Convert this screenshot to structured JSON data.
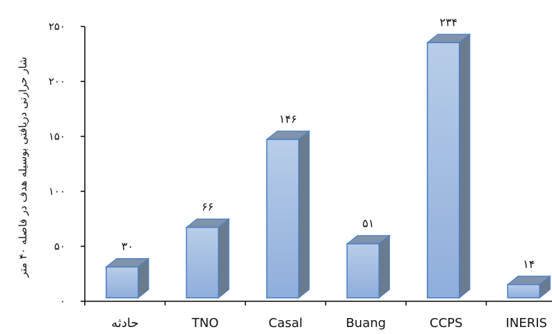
{
  "chart_data": {
    "type": "bar",
    "style": "3d-column",
    "categories": [
      "حادثه",
      "TNO",
      "Casal",
      "Buang",
      "CCPS",
      "INERIS"
    ],
    "values": [
      30,
      66,
      146,
      51,
      234,
      14
    ],
    "value_labels": [
      "۳۰",
      "۶۶",
      "۱۴۶",
      "۵۱",
      "۲۳۴",
      "۱۴"
    ],
    "ylim": [
      0,
      250
    ],
    "y_ticks": [
      {
        "value": 0,
        "label": "۰"
      },
      {
        "value": 50,
        "label": "۵۰"
      },
      {
        "value": 100,
        "label": "۱۰۰"
      },
      {
        "value": 150,
        "label": "۱۵۰"
      },
      {
        "value": 200,
        "label": "۲۰۰"
      },
      {
        "value": 250,
        "label": "۲۵۰"
      }
    ],
    "ylabel": "شار حرارتی دریافتی بوسیله هدف در فاصله ۴۰ متر",
    "xlabel": "",
    "title": "",
    "grid": false,
    "colors": {
      "bar_front_top": "#b8cde8",
      "bar_front_bottom": "#8eaedb",
      "bar_edge": "#4a7ec7",
      "bar_side": "#6b7b8e",
      "bar_top": "#7f93ab",
      "axis": "#000000"
    }
  }
}
